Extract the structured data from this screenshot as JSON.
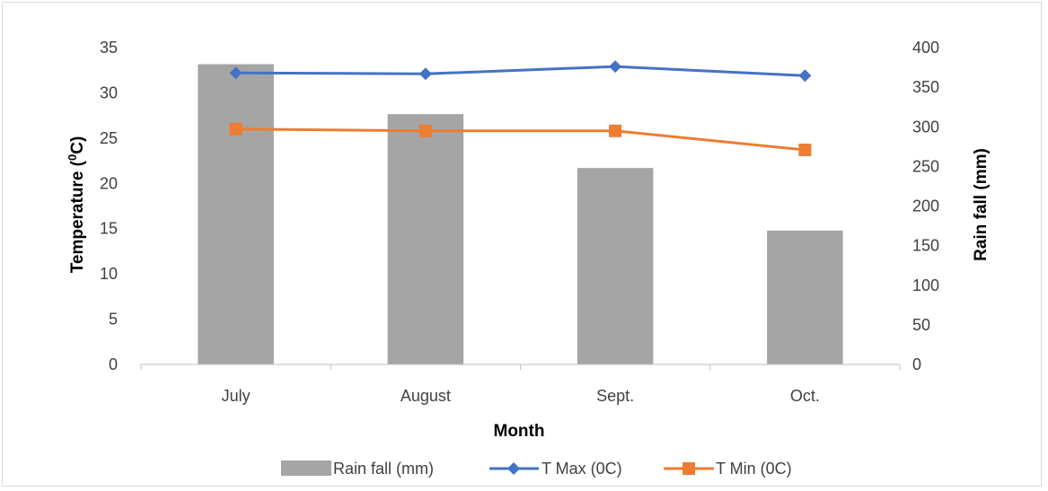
{
  "chart_data": {
    "type": "bar",
    "categories": [
      "July",
      "August",
      "Sept.",
      "Oct."
    ],
    "series": [
      {
        "name": "Rain fall (mm)",
        "kind": "bar",
        "axis": "right",
        "color": "#a5a5a5",
        "values": [
          379,
          316,
          248,
          169
        ]
      },
      {
        "name": "T Max (0C)",
        "kind": "line",
        "axis": "left",
        "marker": "diamond",
        "color": "#4472c4",
        "values": [
          32.2,
          32.1,
          32.9,
          31.9
        ]
      },
      {
        "name": "T Min (0C)",
        "kind": "line",
        "axis": "left",
        "marker": "square",
        "color": "#ed7d31",
        "values": [
          26.0,
          25.8,
          25.8,
          23.7
        ]
      }
    ],
    "xlabel": "Month",
    "ylabel": {
      "main": "Temperature (",
      "sup": "0",
      "unit": "C)"
    },
    "y2label": "Rain fall (mm)",
    "ylim": [
      0,
      35
    ],
    "y_ticks": [
      "0",
      "5",
      "10",
      "15",
      "20",
      "25",
      "30",
      "35"
    ],
    "y2lim": [
      0,
      400
    ],
    "y2_ticks": [
      "0",
      "50",
      "100",
      "150",
      "200",
      "250",
      "300",
      "350",
      "400"
    ],
    "grid": false,
    "legend": "bottom"
  }
}
